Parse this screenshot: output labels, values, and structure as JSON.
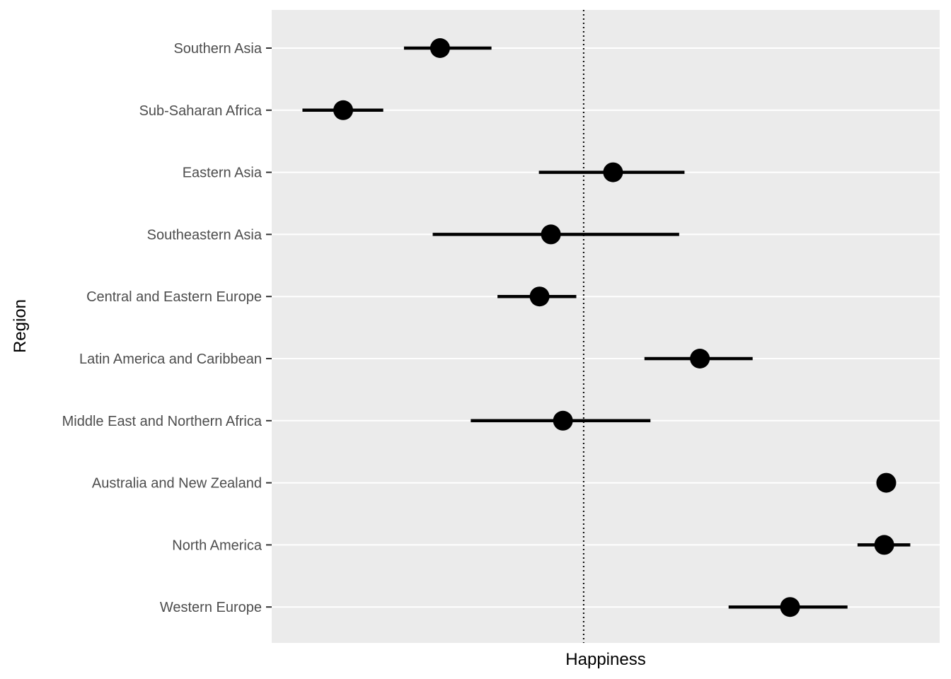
{
  "chart_data": {
    "type": "dot-interval",
    "xlabel": "Happiness",
    "ylabel": "Region",
    "x_ticks_shown": false,
    "xlim": [
      0,
      100
    ],
    "reference_line": {
      "x": 46.7,
      "style": "dotted"
    },
    "grid": "horizontal",
    "categories": [
      "Southern Asia",
      "Sub-Saharan Africa",
      "Eastern Asia",
      "Southeastern Asia",
      "Central and Eastern Europe",
      "Latin America and Caribbean",
      "Middle East and Northern Africa",
      "Australia and New Zealand",
      "North America",
      "Western Europe"
    ],
    "points": [
      {
        "category": "Southern Asia",
        "estimate": 25.2,
        "low": 19.8,
        "high": 32.9
      },
      {
        "category": "Sub-Saharan Africa",
        "estimate": 10.7,
        "low": 4.6,
        "high": 16.7
      },
      {
        "category": "Eastern Asia",
        "estimate": 51.1,
        "low": 40.0,
        "high": 61.8
      },
      {
        "category": "Southeastern Asia",
        "estimate": 41.8,
        "low": 24.1,
        "high": 61.0
      },
      {
        "category": "Central and Eastern Europe",
        "estimate": 40.1,
        "low": 33.8,
        "high": 45.6
      },
      {
        "category": "Latin America and Caribbean",
        "estimate": 64.1,
        "low": 55.8,
        "high": 72.0
      },
      {
        "category": "Middle East and Northern Africa",
        "estimate": 43.6,
        "low": 29.8,
        "high": 56.7
      },
      {
        "category": "Australia and New Zealand",
        "estimate": 92.0,
        "low": 92.0,
        "high": 92.0
      },
      {
        "category": "North America",
        "estimate": 91.7,
        "low": 87.7,
        "high": 95.6
      },
      {
        "category": "Western Europe",
        "estimate": 77.6,
        "low": 68.4,
        "high": 86.2
      }
    ],
    "colors": {
      "panel": "#ebebeb",
      "grid": "#ffffff",
      "mark": "#000000"
    }
  }
}
